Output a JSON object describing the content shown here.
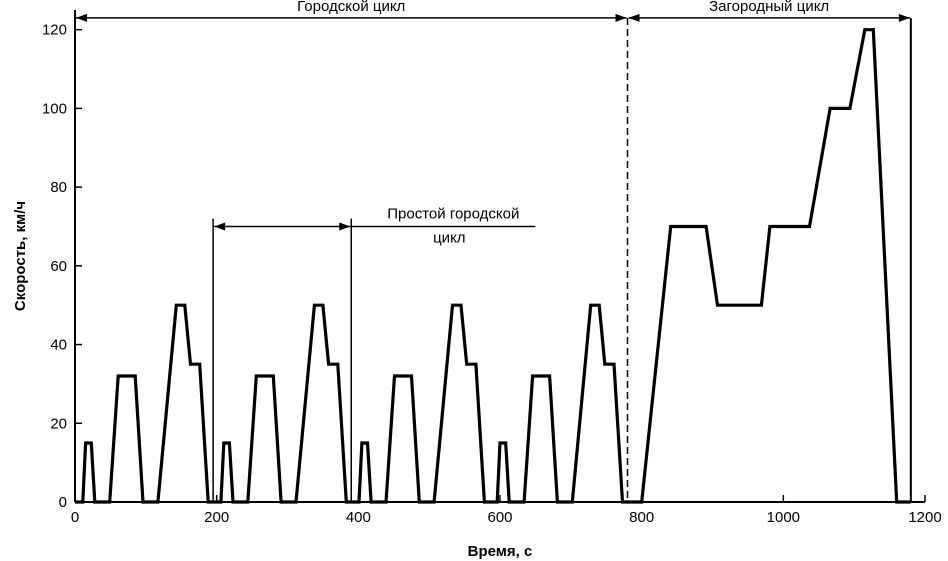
{
  "chart_data": {
    "type": "line",
    "title": "",
    "xlabel": "Время, с",
    "ylabel": "Скорость, км/ч",
    "xlim": [
      0,
      1200
    ],
    "ylim": [
      0,
      125
    ],
    "xticks": [
      0,
      200,
      400,
      600,
      800,
      1000,
      1200
    ],
    "yticks": [
      0,
      20,
      40,
      60,
      80,
      100,
      120
    ],
    "grid": false,
    "legend": "none",
    "series": [
      {
        "name": "",
        "color": "#000000",
        "x": [
          0,
          11,
          15,
          23,
          28,
          49,
          61,
          85,
          96,
          117,
          143,
          155,
          163,
          176,
          188,
          195,
          206,
          210,
          218,
          223,
          244,
          256,
          280,
          291,
          312,
          338,
          350,
          358,
          371,
          383,
          390,
          401,
          405,
          413,
          418,
          439,
          451,
          475,
          486,
          507,
          533,
          545,
          553,
          566,
          578,
          585,
          596,
          600,
          608,
          613,
          634,
          646,
          670,
          681,
          702,
          728,
          740,
          748,
          761,
          773,
          780,
          800,
          841,
          891,
          907,
          969,
          981,
          1037,
          1066,
          1094,
          1115,
          1127,
          1160,
          1180
        ],
        "y": [
          0,
          0,
          15,
          15,
          0,
          0,
          32,
          32,
          0,
          0,
          50,
          50,
          35,
          35,
          0,
          0,
          0,
          15,
          15,
          0,
          0,
          32,
          32,
          0,
          0,
          50,
          50,
          35,
          35,
          0,
          0,
          0,
          15,
          15,
          0,
          0,
          32,
          32,
          0,
          0,
          50,
          50,
          35,
          35,
          0,
          0,
          0,
          15,
          15,
          0,
          0,
          32,
          32,
          0,
          0,
          50,
          50,
          35,
          35,
          0,
          0,
          0,
          70,
          70,
          50,
          50,
          70,
          70,
          100,
          100,
          120,
          120,
          0,
          0
        ]
      }
    ],
    "annotations": {
      "urban_cycle": "Городской цикл",
      "extra_urban_cycle": "Загородный цикл",
      "elementary_urban_cycle_line1": "Простой городской",
      "elementary_urban_cycle_line2": "цикл"
    },
    "phase_boundaries": {
      "urban_start": 0,
      "urban_end": 780,
      "extra_urban_end": 1180,
      "elementary_start": 195,
      "elementary_end": 390,
      "elementary_height": 72,
      "elementary_arrow_y": 70,
      "elementary_label_end": 650,
      "top_arrow_y": 123
    }
  }
}
